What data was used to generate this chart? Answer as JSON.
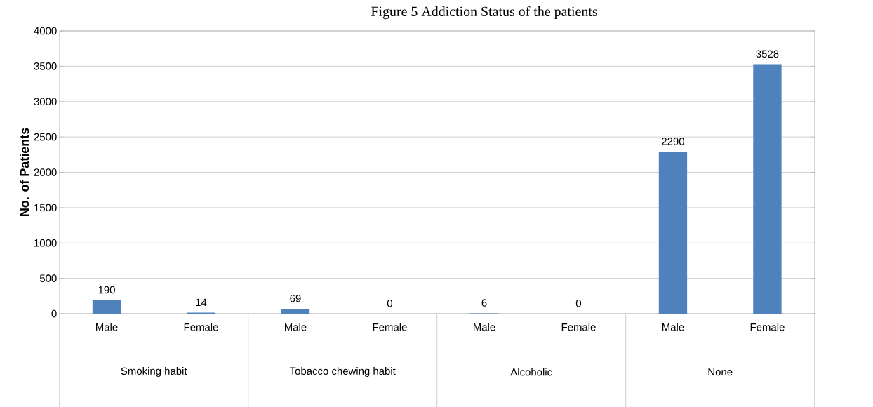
{
  "chart_data": {
    "type": "bar",
    "title": "Figure 5 Addiction Status of the patients",
    "ylabel": "No. of  Patients",
    "categories": [
      "Male",
      "Female",
      "Male",
      "Female",
      "Male",
      "Female",
      "Male",
      "Female"
    ],
    "values": [
      190,
      14,
      69,
      0,
      6,
      0,
      2290,
      3528
    ],
    "color": "#4f81bd",
    "ylim": [
      0,
      4000
    ],
    "yticks": [
      0,
      500,
      1000,
      1500,
      2000,
      2500,
      3000,
      3500,
      4000
    ],
    "grid": "y",
    "data_labels": true,
    "annotations": [
      "Smoking habit",
      "Tobacco chewing habit",
      "Alcoholic",
      "None"
    ]
  }
}
